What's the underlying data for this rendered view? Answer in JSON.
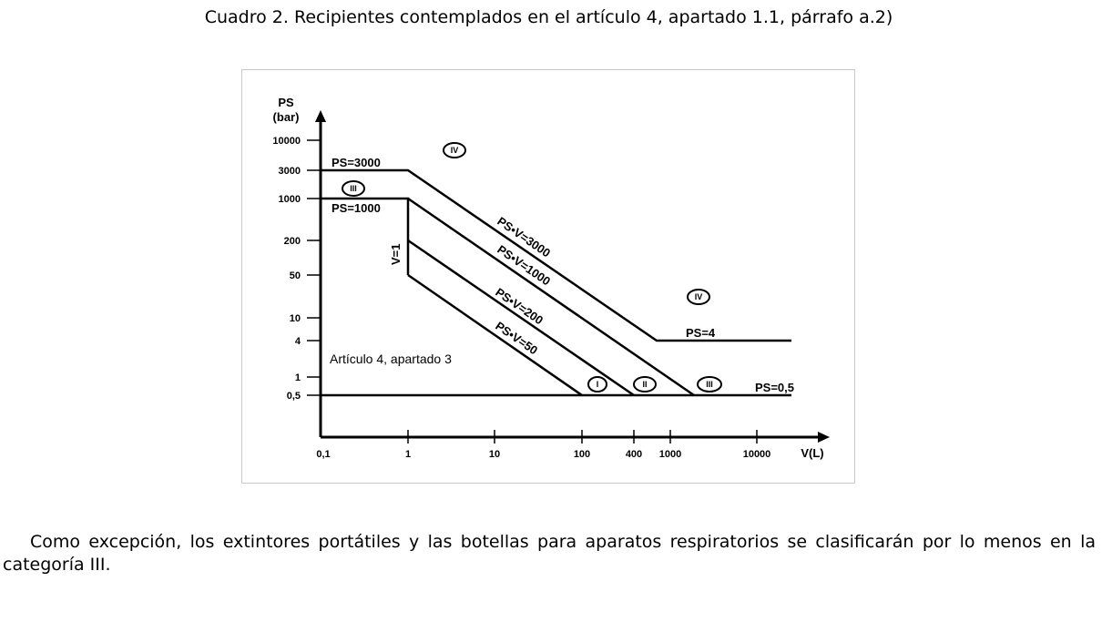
{
  "caption": "Cuadro 2. Recipientes contemplados en el artículo 4, apartado 1.1, párrafo a.2)",
  "figure": {
    "y_axis_label_1": "PS",
    "y_axis_label_2": "(bar)",
    "x_axis_label": "V(L)",
    "y_ticks": [
      "10000",
      "3000",
      "1000",
      "200",
      "50",
      "10",
      "4",
      "1",
      "0,5"
    ],
    "x_ticks": [
      "0,1",
      "1",
      "10",
      "100",
      "400",
      "1000",
      "10000"
    ],
    "line_labels": {
      "ps3000": "PS=3000",
      "ps1000": "PS=1000",
      "ps4": "PS=4",
      "ps05": "PS=0,5",
      "v1": "V=1",
      "psv3000": "PS•V=3000",
      "psv1000": "PS•V=1000",
      "psv200": "PS•V=200",
      "psv50": "PS•V=50"
    },
    "region_note": "Artículo 4, apartado 3",
    "categories": {
      "iv_top": "IV",
      "iii_left": "III",
      "iv_right": "IV",
      "i": "I",
      "ii": "II",
      "iii_bottom": "III"
    }
  },
  "paragraph": "Como excepción, los extintores portátiles y las botellas para aparatos respiratorios se clasificarán por lo menos en la categoría III."
}
